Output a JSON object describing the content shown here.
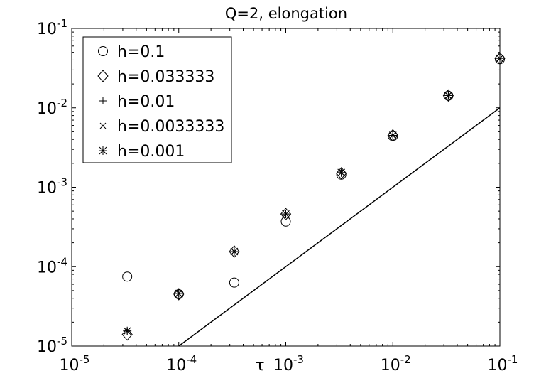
{
  "chart_data": {
    "type": "scatter",
    "title": "Q=2, elongation",
    "xlabel": "τ",
    "ylabel": "",
    "xscale": "log",
    "yscale": "log",
    "xlim": [
      1e-05,
      0.1
    ],
    "ylim": [
      1e-05,
      0.1
    ],
    "xticks": [
      {
        "value": 1e-05,
        "base": "10",
        "exp": "-5"
      },
      {
        "value": 0.0001,
        "base": "10",
        "exp": "-4"
      },
      {
        "value": 0.001,
        "base": "10",
        "exp": "-3"
      },
      {
        "value": 0.01,
        "base": "10",
        "exp": "-2"
      },
      {
        "value": 0.1,
        "base": "10",
        "exp": "-1"
      }
    ],
    "yticks": [
      {
        "value": 1e-05,
        "base": "10",
        "exp": "-5"
      },
      {
        "value": 0.0001,
        "base": "10",
        "exp": "-4"
      },
      {
        "value": 0.001,
        "base": "10",
        "exp": "-3"
      },
      {
        "value": 0.01,
        "base": "10",
        "exp": "-2"
      },
      {
        "value": 0.1,
        "base": "10",
        "exp": "-1"
      }
    ],
    "grid": false,
    "legend_position": "top-left",
    "series": [
      {
        "name": "h=0.1",
        "marker": "circle",
        "points": [
          [
            3.3e-05,
            7.5e-05
          ],
          [
            0.0001,
            4.5e-05
          ],
          [
            0.00033,
            6.3e-05
          ],
          [
            0.001,
            0.00037
          ],
          [
            0.0033,
            0.00144
          ],
          [
            0.01,
            0.0044
          ],
          [
            0.033,
            0.0142
          ],
          [
            0.1,
            0.041
          ]
        ]
      },
      {
        "name": "h=0.033333",
        "marker": "diamond",
        "points": [
          [
            3.3e-05,
            1.4e-05
          ],
          [
            0.0001,
            4.5e-05
          ],
          [
            0.00033,
            0.000155
          ],
          [
            0.001,
            0.00046
          ],
          [
            0.0033,
            0.0015
          ],
          [
            0.01,
            0.0045
          ],
          [
            0.033,
            0.0143
          ],
          [
            0.1,
            0.042
          ]
        ]
      },
      {
        "name": "h=0.01",
        "marker": "plus",
        "points": [
          [
            3.3e-05,
            1.55e-05
          ],
          [
            0.0001,
            4.6e-05
          ],
          [
            0.00033,
            0.000155
          ],
          [
            0.001,
            0.00046
          ],
          [
            0.0033,
            0.00153
          ],
          [
            0.01,
            0.0045
          ],
          [
            0.033,
            0.0143
          ],
          [
            0.1,
            0.042
          ]
        ]
      },
      {
        "name": "h=0.0033333",
        "marker": "x",
        "points": [
          [
            3.3e-05,
            1.55e-05
          ],
          [
            0.0001,
            4.6e-05
          ],
          [
            0.00033,
            0.000155
          ],
          [
            0.001,
            0.00046
          ],
          [
            0.0033,
            0.00153
          ],
          [
            0.01,
            0.0045
          ],
          [
            0.033,
            0.0143
          ],
          [
            0.1,
            0.042
          ]
        ]
      },
      {
        "name": "h=0.001",
        "marker": "asterisk",
        "points": [
          [
            3.3e-05,
            1.55e-05
          ],
          [
            0.0001,
            4.6e-05
          ],
          [
            0.00033,
            0.000155
          ],
          [
            0.001,
            0.00046
          ],
          [
            0.0033,
            0.00153
          ],
          [
            0.01,
            0.0045
          ],
          [
            0.033,
            0.0143
          ],
          [
            0.1,
            0.042
          ]
        ]
      }
    ],
    "reference_line": {
      "points": [
        [
          0.0001,
          1e-05
        ],
        [
          0.1,
          0.01
        ]
      ]
    },
    "colors": {
      "axes": "#000000",
      "background": "#ffffff"
    }
  }
}
